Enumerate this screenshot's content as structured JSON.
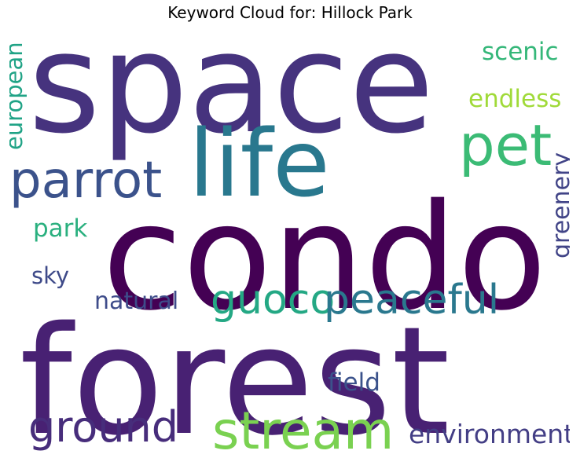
{
  "title": "Keyword Cloud for: Hillock Park",
  "words": [
    {
      "key": "space",
      "text": "space",
      "color": "#46337e"
    },
    {
      "key": "condo",
      "text": "condo",
      "color": "#440154"
    },
    {
      "key": "forest",
      "text": "forest",
      "color": "#482173"
    },
    {
      "key": "life",
      "text": "life",
      "color": "#29788e"
    },
    {
      "key": "pet",
      "text": "pet",
      "color": "#3bbb75"
    },
    {
      "key": "parrot",
      "text": "parrot",
      "color": "#3b528b"
    },
    {
      "key": "stream",
      "text": "stream",
      "color": "#7ad151"
    },
    {
      "key": "ground",
      "text": "ground",
      "color": "#472d7b"
    },
    {
      "key": "guoco",
      "text": "guoco",
      "color": "#24a884"
    },
    {
      "key": "peaceful",
      "text": "peaceful",
      "color": "#2a788e"
    },
    {
      "key": "environment",
      "text": "environment",
      "color": "#433e85"
    },
    {
      "key": "scenic",
      "text": "scenic",
      "color": "#35b779"
    },
    {
      "key": "endless",
      "text": "endless",
      "color": "#a0da39"
    },
    {
      "key": "european",
      "text": "european",
      "color": "#20a386"
    },
    {
      "key": "greenery",
      "text": "greenery",
      "color": "#414487"
    },
    {
      "key": "park",
      "text": "park",
      "color": "#2ab07f"
    },
    {
      "key": "sky",
      "text": "sky",
      "color": "#3e4a89"
    },
    {
      "key": "natural",
      "text": "natural",
      "color": "#3e4c8a"
    },
    {
      "key": "field",
      "text": "field",
      "color": "#3b528b"
    }
  ]
}
